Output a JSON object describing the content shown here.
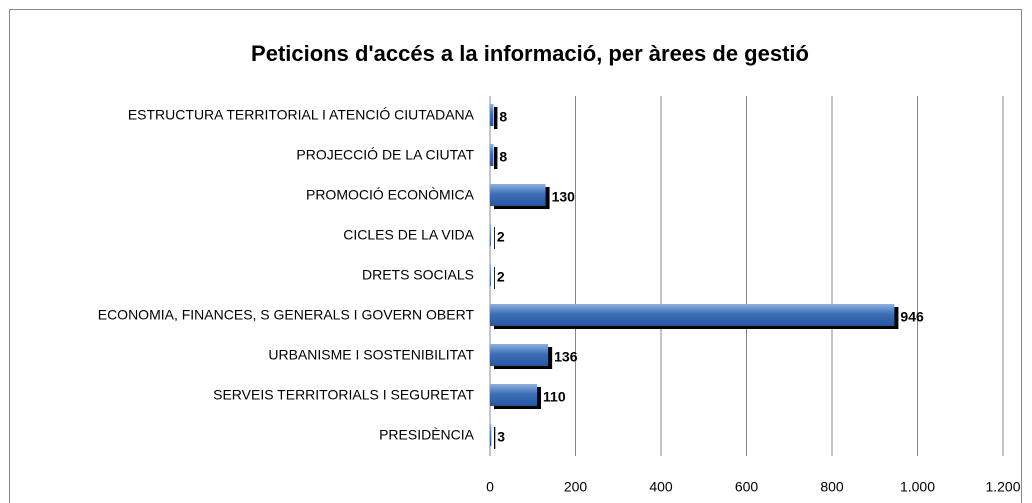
{
  "chart_data": {
    "type": "bar",
    "orientation": "horizontal",
    "title": "Peticions d'accés a la informació, per àrees de gestió",
    "categories": [
      "ESTRUCTURA TERRITORIAL I ATENCIÓ CIUTADANA",
      "PROJECCIÓ DE LA CIUTAT",
      "PROMOCIÓ ECONÒMICA",
      "CICLES DE LA VIDA",
      "DRETS SOCIALS",
      "ECONOMIA, FINANCES, S GENERALS I GOVERN OBERT",
      "URBANISME I SOSTENIBILITAT",
      "SERVEIS TERRITORIALS I SEGURETAT",
      "PRESIDÈNCIA"
    ],
    "values": [
      8,
      8,
      130,
      2,
      2,
      946,
      136,
      110,
      3
    ],
    "color": "#3c6fb8",
    "label_color": "#e00000",
    "xlim": [
      0,
      1200
    ],
    "xticks": [
      0,
      200,
      400,
      600,
      800,
      {
        "value": 1000,
        "label": "1.000"
      },
      {
        "value": 1200,
        "label": "1.200"
      }
    ],
    "grid": true
  }
}
